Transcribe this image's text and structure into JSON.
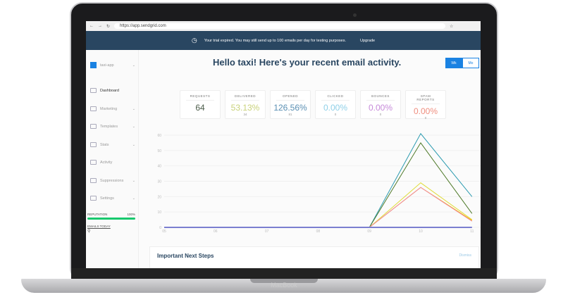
{
  "device": {
    "label": "MacBook"
  },
  "browser": {
    "url": "https://app.sendgrid.com"
  },
  "banner": {
    "message": "Your trial expired. You may still send up to 100 emails per day for testing purposes.",
    "action": "Upgrade"
  },
  "sidebar": {
    "account": "taxi-app",
    "items": [
      {
        "label": "Dashboard"
      },
      {
        "label": "Marketing"
      },
      {
        "label": "Templates"
      },
      {
        "label": "Stats"
      },
      {
        "label": "Activity"
      },
      {
        "label": "Suppressions"
      },
      {
        "label": "Settings"
      }
    ],
    "reputation_label": "REPUTATION",
    "reputation_value": "100%",
    "reputation_fraction": 1.0,
    "emails_today_label": "EMAILS TODAY"
  },
  "header": {
    "title": "Hello taxi! Here's your recent email activity.",
    "toggle": [
      "Wk",
      "Mo"
    ],
    "active": "Wk"
  },
  "stats": [
    {
      "label": "REQUESTS",
      "value": "64",
      "sub": "",
      "color": "#4d5d4b"
    },
    {
      "label": "DELIVERED",
      "value": "53.13%",
      "sub": "34",
      "color": "#c9d27a"
    },
    {
      "label": "OPENED",
      "value": "126.56%",
      "sub": "81",
      "color": "#5a8fb3"
    },
    {
      "label": "CLICKED",
      "value": "0.00%",
      "sub": "0",
      "color": "#8fd0e8"
    },
    {
      "label": "BOUNCES",
      "value": "0.00%",
      "sub": "0",
      "color": "#c68ad9"
    },
    {
      "label": "SPAM REPORTS",
      "value": "0.00%",
      "sub": "0",
      "color": "#ef8e7f"
    }
  ],
  "chart_data": {
    "type": "line",
    "categories": [
      "05",
      "06",
      "07",
      "08",
      "09",
      "10",
      "11"
    ],
    "yticks": [
      "0",
      "10",
      "20",
      "30",
      "40",
      "50",
      "60"
    ],
    "ylim": [
      0,
      60
    ],
    "series": [
      {
        "color": "#2c9bb0",
        "values": [
          0,
          0,
          0,
          0,
          0,
          61,
          20
        ]
      },
      {
        "color": "#4f7a2a",
        "values": [
          0,
          0,
          0,
          0,
          0,
          55,
          9
        ]
      },
      {
        "color": "#e0dc3a",
        "values": [
          0,
          0,
          0,
          0,
          0,
          29,
          5
        ]
      },
      {
        "color": "#f4b400",
        "values": [
          0,
          0,
          0,
          0,
          0,
          26,
          4.5
        ]
      },
      {
        "color": "#f08aa0",
        "values": [
          0,
          0,
          0,
          0,
          0,
          26,
          4
        ]
      },
      {
        "color": "#7b7fd0",
        "values": [
          0,
          0,
          0,
          0,
          0,
          0,
          0
        ]
      }
    ]
  },
  "next_steps": {
    "title": "Important Next Steps",
    "dismiss": "Dismiss"
  }
}
